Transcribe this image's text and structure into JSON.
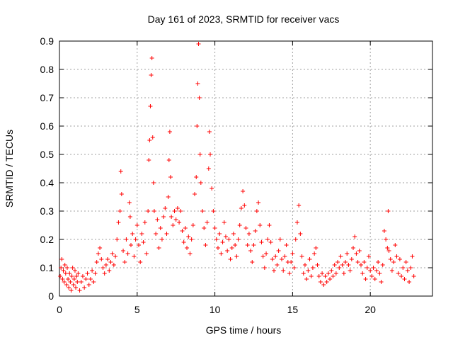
{
  "chart_data": {
    "type": "scatter",
    "title": "Day 161 of 2023, SRMTID for receiver vacs",
    "xlabel": "GPS time / hours",
    "ylabel": "SRMTID / TECUs",
    "xlim": [
      0,
      24
    ],
    "ylim": [
      0,
      0.9
    ],
    "xticks": [
      0,
      5,
      10,
      15,
      20
    ],
    "yticks": [
      0,
      0.1,
      0.2,
      0.3,
      0.4,
      0.5,
      0.6,
      0.7,
      0.8,
      0.9
    ],
    "grid": true,
    "legend": "none",
    "marker": "+",
    "series": [
      {
        "name": "vacs",
        "color": "#ff0000",
        "points": [
          [
            0.05,
            0.07
          ],
          [
            0.1,
            0.1
          ],
          [
            0.15,
            0.13
          ],
          [
            0.2,
            0.06
          ],
          [
            0.25,
            0.09
          ],
          [
            0.3,
            0.05
          ],
          [
            0.35,
            0.11
          ],
          [
            0.4,
            0.08
          ],
          [
            0.45,
            0.04
          ],
          [
            0.5,
            0.1
          ],
          [
            0.55,
            0.06
          ],
          [
            0.6,
            0.03
          ],
          [
            0.65,
            0.08
          ],
          [
            0.7,
            0.05
          ],
          [
            0.75,
            0.02
          ],
          [
            0.8,
            0.07
          ],
          [
            0.85,
            0.1
          ],
          [
            0.9,
            0.04
          ],
          [
            0.95,
            0.06
          ],
          [
            1.0,
            0.09
          ],
          [
            1.05,
            0.03
          ],
          [
            1.1,
            0.07
          ],
          [
            1.15,
            0.05
          ],
          [
            1.2,
            0.08
          ],
          [
            1.3,
            0.02
          ],
          [
            1.4,
            0.05
          ],
          [
            1.5,
            0.07
          ],
          [
            1.6,
            0.03
          ],
          [
            1.7,
            0.06
          ],
          [
            1.8,
            0.08
          ],
          [
            1.9,
            0.04
          ],
          [
            2.0,
            0.06
          ],
          [
            2.1,
            0.09
          ],
          [
            2.2,
            0.05
          ],
          [
            2.3,
            0.08
          ],
          [
            2.4,
            0.12
          ],
          [
            2.5,
            0.15
          ],
          [
            2.6,
            0.17
          ],
          [
            2.7,
            0.13
          ],
          [
            2.8,
            0.1
          ],
          [
            2.9,
            0.08
          ],
          [
            3.0,
            0.11
          ],
          [
            3.1,
            0.13
          ],
          [
            3.2,
            0.09
          ],
          [
            3.3,
            0.12
          ],
          [
            3.4,
            0.15
          ],
          [
            3.5,
            0.11
          ],
          [
            3.6,
            0.14
          ],
          [
            3.7,
            0.2
          ],
          [
            3.8,
            0.26
          ],
          [
            3.9,
            0.3
          ],
          [
            3.95,
            0.44
          ],
          [
            4.0,
            0.36
          ],
          [
            4.1,
            0.16
          ],
          [
            4.2,
            0.12
          ],
          [
            4.3,
            0.2
          ],
          [
            4.4,
            0.15
          ],
          [
            4.5,
            0.33
          ],
          [
            4.55,
            0.28
          ],
          [
            4.6,
            0.18
          ],
          [
            4.7,
            0.22
          ],
          [
            4.8,
            0.14
          ],
          [
            4.9,
            0.2
          ],
          [
            5.0,
            0.25
          ],
          [
            5.1,
            0.18
          ],
          [
            5.2,
            0.12
          ],
          [
            5.3,
            0.22
          ],
          [
            5.4,
            0.19
          ],
          [
            5.5,
            0.26
          ],
          [
            5.6,
            0.15
          ],
          [
            5.7,
            0.3
          ],
          [
            5.75,
            0.48
          ],
          [
            5.8,
            0.55
          ],
          [
            5.85,
            0.67
          ],
          [
            5.9,
            0.78
          ],
          [
            5.95,
            0.84
          ],
          [
            6.0,
            0.56
          ],
          [
            6.05,
            0.4
          ],
          [
            6.1,
            0.3
          ],
          [
            6.2,
            0.22
          ],
          [
            6.3,
            0.27
          ],
          [
            6.4,
            0.17
          ],
          [
            6.5,
            0.24
          ],
          [
            6.6,
            0.2
          ],
          [
            6.7,
            0.28
          ],
          [
            6.8,
            0.31
          ],
          [
            6.9,
            0.22
          ],
          [
            7.0,
            0.35
          ],
          [
            7.05,
            0.48
          ],
          [
            7.1,
            0.58
          ],
          [
            7.15,
            0.42
          ],
          [
            7.2,
            0.28
          ],
          [
            7.3,
            0.25
          ],
          [
            7.4,
            0.3
          ],
          [
            7.5,
            0.27
          ],
          [
            7.6,
            0.31
          ],
          [
            7.7,
            0.26
          ],
          [
            7.8,
            0.3
          ],
          [
            7.9,
            0.23
          ],
          [
            8.0,
            0.19
          ],
          [
            8.1,
            0.24
          ],
          [
            8.2,
            0.17
          ],
          [
            8.3,
            0.21
          ],
          [
            8.4,
            0.15
          ],
          [
            8.5,
            0.2
          ],
          [
            8.6,
            0.25
          ],
          [
            8.7,
            0.36
          ],
          [
            8.8,
            0.42
          ],
          [
            8.85,
            0.6
          ],
          [
            8.9,
            0.75
          ],
          [
            8.95,
            0.89
          ],
          [
            9.0,
            0.7
          ],
          [
            9.05,
            0.5
          ],
          [
            9.1,
            0.4
          ],
          [
            9.2,
            0.3
          ],
          [
            9.3,
            0.24
          ],
          [
            9.4,
            0.18
          ],
          [
            9.5,
            0.26
          ],
          [
            9.6,
            0.45
          ],
          [
            9.65,
            0.58
          ],
          [
            9.7,
            0.5
          ],
          [
            9.8,
            0.38
          ],
          [
            9.9,
            0.3
          ],
          [
            10.0,
            0.24
          ],
          [
            10.1,
            0.2
          ],
          [
            10.2,
            0.17
          ],
          [
            10.3,
            0.22
          ],
          [
            10.4,
            0.15
          ],
          [
            10.5,
            0.19
          ],
          [
            10.6,
            0.26
          ],
          [
            10.7,
            0.21
          ],
          [
            10.8,
            0.16
          ],
          [
            10.9,
            0.2
          ],
          [
            11.0,
            0.13
          ],
          [
            11.1,
            0.17
          ],
          [
            11.2,
            0.22
          ],
          [
            11.3,
            0.18
          ],
          [
            11.4,
            0.14
          ],
          [
            11.5,
            0.2
          ],
          [
            11.6,
            0.25
          ],
          [
            11.7,
            0.31
          ],
          [
            11.8,
            0.37
          ],
          [
            11.9,
            0.32
          ],
          [
            12.0,
            0.24
          ],
          [
            12.1,
            0.18
          ],
          [
            12.2,
            0.22
          ],
          [
            12.3,
            0.16
          ],
          [
            12.4,
            0.12
          ],
          [
            12.5,
            0.18
          ],
          [
            12.6,
            0.23
          ],
          [
            12.7,
            0.3
          ],
          [
            12.8,
            0.33
          ],
          [
            12.9,
            0.25
          ],
          [
            13.0,
            0.19
          ],
          [
            13.1,
            0.14
          ],
          [
            13.2,
            0.1
          ],
          [
            13.3,
            0.15
          ],
          [
            13.4,
            0.2
          ],
          [
            13.5,
            0.25
          ],
          [
            13.6,
            0.19
          ],
          [
            13.7,
            0.13
          ],
          [
            13.8,
            0.09
          ],
          [
            13.9,
            0.14
          ],
          [
            14.0,
            0.11
          ],
          [
            14.1,
            0.16
          ],
          [
            14.2,
            0.2
          ],
          [
            14.3,
            0.13
          ],
          [
            14.4,
            0.09
          ],
          [
            14.5,
            0.14
          ],
          [
            14.6,
            0.18
          ],
          [
            14.7,
            0.12
          ],
          [
            14.8,
            0.08
          ],
          [
            14.9,
            0.12
          ],
          [
            15.0,
            0.15
          ],
          [
            15.1,
            0.1
          ],
          [
            15.2,
            0.2
          ],
          [
            15.3,
            0.26
          ],
          [
            15.4,
            0.32
          ],
          [
            15.5,
            0.22
          ],
          [
            15.6,
            0.14
          ],
          [
            15.7,
            0.08
          ],
          [
            15.8,
            0.11
          ],
          [
            15.9,
            0.06
          ],
          [
            16.0,
            0.09
          ],
          [
            16.1,
            0.13
          ],
          [
            16.2,
            0.07
          ],
          [
            16.3,
            0.1
          ],
          [
            16.4,
            0.15
          ],
          [
            16.5,
            0.17
          ],
          [
            16.6,
            0.11
          ],
          [
            16.7,
            0.07
          ],
          [
            16.8,
            0.05
          ],
          [
            16.9,
            0.08
          ],
          [
            17.0,
            0.04
          ],
          [
            17.1,
            0.07
          ],
          [
            17.2,
            0.05
          ],
          [
            17.3,
            0.08
          ],
          [
            17.4,
            0.06
          ],
          [
            17.5,
            0.09
          ],
          [
            17.6,
            0.07
          ],
          [
            17.7,
            0.11
          ],
          [
            17.8,
            0.08
          ],
          [
            17.9,
            0.12
          ],
          [
            18.0,
            0.1
          ],
          [
            18.1,
            0.14
          ],
          [
            18.2,
            0.11
          ],
          [
            18.3,
            0.08
          ],
          [
            18.4,
            0.12
          ],
          [
            18.5,
            0.15
          ],
          [
            18.6,
            0.11
          ],
          [
            18.7,
            0.09
          ],
          [
            18.8,
            0.13
          ],
          [
            18.9,
            0.17
          ],
          [
            19.0,
            0.21
          ],
          [
            19.1,
            0.15
          ],
          [
            19.2,
            0.12
          ],
          [
            19.3,
            0.16
          ],
          [
            19.4,
            0.11
          ],
          [
            19.5,
            0.08
          ],
          [
            19.6,
            0.12
          ],
          [
            19.7,
            0.06
          ],
          [
            19.8,
            0.1
          ],
          [
            19.9,
            0.14
          ],
          [
            20.0,
            0.09
          ],
          [
            20.1,
            0.07
          ],
          [
            20.2,
            0.1
          ],
          [
            20.3,
            0.06
          ],
          [
            20.4,
            0.09
          ],
          [
            20.5,
            0.12
          ],
          [
            20.6,
            0.08
          ],
          [
            20.7,
            0.05
          ],
          [
            20.8,
            0.11
          ],
          [
            20.9,
            0.23
          ],
          [
            21.0,
            0.2
          ],
          [
            21.1,
            0.17
          ],
          [
            21.15,
            0.3
          ],
          [
            21.2,
            0.16
          ],
          [
            21.3,
            0.13
          ],
          [
            21.4,
            0.09
          ],
          [
            21.5,
            0.12
          ],
          [
            21.6,
            0.18
          ],
          [
            21.7,
            0.14
          ],
          [
            21.8,
            0.08
          ],
          [
            21.9,
            0.13
          ],
          [
            22.0,
            0.07
          ],
          [
            22.1,
            0.1
          ],
          [
            22.2,
            0.06
          ],
          [
            22.3,
            0.12
          ],
          [
            22.4,
            0.09
          ],
          [
            22.5,
            0.05
          ],
          [
            22.6,
            0.1
          ],
          [
            22.7,
            0.14
          ],
          [
            22.8,
            0.07
          ]
        ]
      }
    ]
  }
}
